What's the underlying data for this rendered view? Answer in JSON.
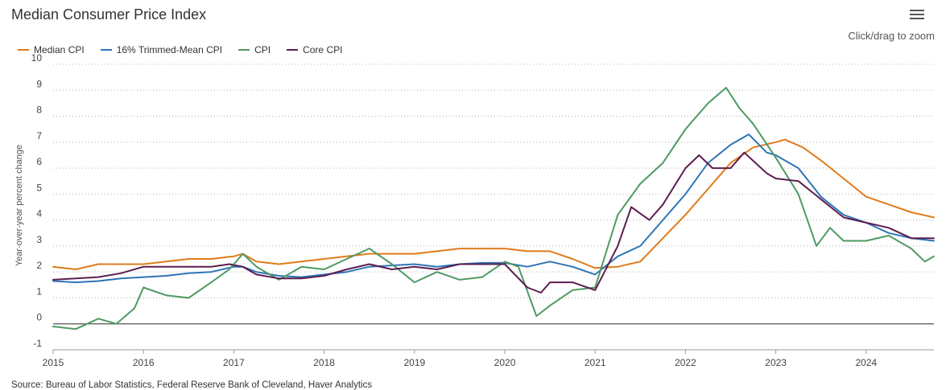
{
  "header": {
    "title": "Median Consumer Price Index",
    "zoom_hint": "Click/drag to zoom",
    "menu_icon": "hamburger-menu-icon"
  },
  "source": "Source: Bureau of Labor Statistics, Federal Reserve Bank of Cleveland, Haver Analytics",
  "chart_data": {
    "type": "line",
    "title": "Median Consumer Price Index",
    "xlabel": "",
    "ylabel": "Year-over-year percent change",
    "xlim": [
      2015.0,
      2024.75
    ],
    "ylim": [
      -1,
      10
    ],
    "yticks": [
      "-1",
      "0",
      "1",
      "2",
      "3",
      "4",
      "5",
      "6",
      "7",
      "8",
      "9",
      "10"
    ],
    "xticks": [
      "2015",
      "2016",
      "2017",
      "2018",
      "2019",
      "2020",
      "2021",
      "2022",
      "2023",
      "2024"
    ],
    "grid": "horizontal dotted",
    "legend_position": "top-left",
    "series": [
      {
        "name": "Median CPI",
        "color": "#e07b1a",
        "points": [
          [
            2015.0,
            2.2
          ],
          [
            2015.25,
            2.1
          ],
          [
            2015.5,
            2.3
          ],
          [
            2015.75,
            2.3
          ],
          [
            2016.0,
            2.3
          ],
          [
            2016.25,
            2.4
          ],
          [
            2016.5,
            2.5
          ],
          [
            2016.75,
            2.5
          ],
          [
            2017.0,
            2.6
          ],
          [
            2017.1,
            2.7
          ],
          [
            2017.25,
            2.4
          ],
          [
            2017.5,
            2.3
          ],
          [
            2017.75,
            2.4
          ],
          [
            2018.0,
            2.5
          ],
          [
            2018.25,
            2.6
          ],
          [
            2018.5,
            2.7
          ],
          [
            2018.75,
            2.7
          ],
          [
            2019.0,
            2.7
          ],
          [
            2019.25,
            2.8
          ],
          [
            2019.5,
            2.9
          ],
          [
            2019.75,
            2.9
          ],
          [
            2020.0,
            2.9
          ],
          [
            2020.25,
            2.8
          ],
          [
            2020.5,
            2.8
          ],
          [
            2020.75,
            2.5
          ],
          [
            2021.0,
            2.15
          ],
          [
            2021.25,
            2.2
          ],
          [
            2021.5,
            2.4
          ],
          [
            2021.75,
            3.3
          ],
          [
            2022.0,
            4.2
          ],
          [
            2022.25,
            5.2
          ],
          [
            2022.5,
            6.2
          ],
          [
            2022.75,
            6.8
          ],
          [
            2023.0,
            7.0
          ],
          [
            2023.1,
            7.1
          ],
          [
            2023.3,
            6.8
          ],
          [
            2023.5,
            6.3
          ],
          [
            2023.75,
            5.6
          ],
          [
            2024.0,
            4.9
          ],
          [
            2024.25,
            4.6
          ],
          [
            2024.5,
            4.3
          ],
          [
            2024.75,
            4.1
          ]
        ]
      },
      {
        "name": "16% Trimmed-Mean CPI",
        "color": "#2e75b6",
        "points": [
          [
            2015.0,
            1.65
          ],
          [
            2015.25,
            1.6
          ],
          [
            2015.5,
            1.65
          ],
          [
            2015.75,
            1.75
          ],
          [
            2016.0,
            1.8
          ],
          [
            2016.25,
            1.85
          ],
          [
            2016.5,
            1.95
          ],
          [
            2016.75,
            2.0
          ],
          [
            2017.0,
            2.2
          ],
          [
            2017.1,
            2.2
          ],
          [
            2017.25,
            2.0
          ],
          [
            2017.5,
            1.85
          ],
          [
            2017.75,
            1.8
          ],
          [
            2018.0,
            1.9
          ],
          [
            2018.25,
            2.0
          ],
          [
            2018.5,
            2.2
          ],
          [
            2018.75,
            2.25
          ],
          [
            2019.0,
            2.3
          ],
          [
            2019.25,
            2.2
          ],
          [
            2019.5,
            2.3
          ],
          [
            2019.75,
            2.35
          ],
          [
            2020.0,
            2.35
          ],
          [
            2020.25,
            2.2
          ],
          [
            2020.5,
            2.4
          ],
          [
            2020.75,
            2.2
          ],
          [
            2021.0,
            1.9
          ],
          [
            2021.25,
            2.6
          ],
          [
            2021.5,
            3.0
          ],
          [
            2021.75,
            4.0
          ],
          [
            2022.0,
            5.0
          ],
          [
            2022.25,
            6.2
          ],
          [
            2022.5,
            6.9
          ],
          [
            2022.7,
            7.3
          ],
          [
            2022.9,
            6.6
          ],
          [
            2023.0,
            6.5
          ],
          [
            2023.25,
            6.0
          ],
          [
            2023.5,
            4.9
          ],
          [
            2023.75,
            4.2
          ],
          [
            2024.0,
            3.9
          ],
          [
            2024.25,
            3.5
          ],
          [
            2024.5,
            3.3
          ],
          [
            2024.75,
            3.2
          ]
        ]
      },
      {
        "name": "CPI",
        "color": "#4e9a63",
        "points": [
          [
            2015.0,
            -0.1
          ],
          [
            2015.25,
            -0.2
          ],
          [
            2015.5,
            0.2
          ],
          [
            2015.7,
            0.0
          ],
          [
            2015.9,
            0.6
          ],
          [
            2016.0,
            1.4
          ],
          [
            2016.25,
            1.1
          ],
          [
            2016.5,
            1.0
          ],
          [
            2016.75,
            1.6
          ],
          [
            2016.95,
            2.1
          ],
          [
            2017.1,
            2.7
          ],
          [
            2017.25,
            2.2
          ],
          [
            2017.5,
            1.7
          ],
          [
            2017.75,
            2.2
          ],
          [
            2018.0,
            2.1
          ],
          [
            2018.25,
            2.5
          ],
          [
            2018.5,
            2.9
          ],
          [
            2018.75,
            2.3
          ],
          [
            2019.0,
            1.6
          ],
          [
            2019.25,
            2.0
          ],
          [
            2019.5,
            1.7
          ],
          [
            2019.75,
            1.8
          ],
          [
            2020.0,
            2.4
          ],
          [
            2020.15,
            2.2
          ],
          [
            2020.35,
            0.3
          ],
          [
            2020.5,
            0.7
          ],
          [
            2020.75,
            1.3
          ],
          [
            2021.0,
            1.4
          ],
          [
            2021.25,
            4.2
          ],
          [
            2021.5,
            5.4
          ],
          [
            2021.75,
            6.2
          ],
          [
            2022.0,
            7.5
          ],
          [
            2022.25,
            8.5
          ],
          [
            2022.45,
            9.1
          ],
          [
            2022.6,
            8.3
          ],
          [
            2022.75,
            7.7
          ],
          [
            2023.0,
            6.4
          ],
          [
            2023.25,
            5.0
          ],
          [
            2023.45,
            3.0
          ],
          [
            2023.6,
            3.7
          ],
          [
            2023.75,
            3.2
          ],
          [
            2024.0,
            3.2
          ],
          [
            2024.25,
            3.4
          ],
          [
            2024.5,
            2.9
          ],
          [
            2024.65,
            2.4
          ],
          [
            2024.75,
            2.6
          ]
        ]
      },
      {
        "name": "Core CPI",
        "color": "#5b1e4f",
        "points": [
          [
            2015.0,
            1.7
          ],
          [
            2015.25,
            1.75
          ],
          [
            2015.5,
            1.8
          ],
          [
            2015.75,
            1.95
          ],
          [
            2016.0,
            2.2
          ],
          [
            2016.25,
            2.2
          ],
          [
            2016.5,
            2.2
          ],
          [
            2016.75,
            2.2
          ],
          [
            2016.95,
            2.3
          ],
          [
            2017.1,
            2.2
          ],
          [
            2017.25,
            1.9
          ],
          [
            2017.5,
            1.75
          ],
          [
            2017.75,
            1.75
          ],
          [
            2018.0,
            1.85
          ],
          [
            2018.25,
            2.1
          ],
          [
            2018.5,
            2.3
          ],
          [
            2018.75,
            2.1
          ],
          [
            2019.0,
            2.2
          ],
          [
            2019.25,
            2.1
          ],
          [
            2019.5,
            2.3
          ],
          [
            2019.75,
            2.3
          ],
          [
            2020.0,
            2.3
          ],
          [
            2020.25,
            1.4
          ],
          [
            2020.4,
            1.2
          ],
          [
            2020.5,
            1.6
          ],
          [
            2020.75,
            1.6
          ],
          [
            2021.0,
            1.3
          ],
          [
            2021.25,
            3.0
          ],
          [
            2021.4,
            4.5
          ],
          [
            2021.6,
            4.0
          ],
          [
            2021.75,
            4.6
          ],
          [
            2022.0,
            6.0
          ],
          [
            2022.15,
            6.5
          ],
          [
            2022.3,
            6.0
          ],
          [
            2022.5,
            6.0
          ],
          [
            2022.65,
            6.6
          ],
          [
            2022.9,
            5.8
          ],
          [
            2023.0,
            5.6
          ],
          [
            2023.25,
            5.5
          ],
          [
            2023.5,
            4.8
          ],
          [
            2023.75,
            4.1
          ],
          [
            2024.0,
            3.9
          ],
          [
            2024.25,
            3.7
          ],
          [
            2024.5,
            3.3
          ],
          [
            2024.75,
            3.3
          ]
        ]
      }
    ]
  }
}
